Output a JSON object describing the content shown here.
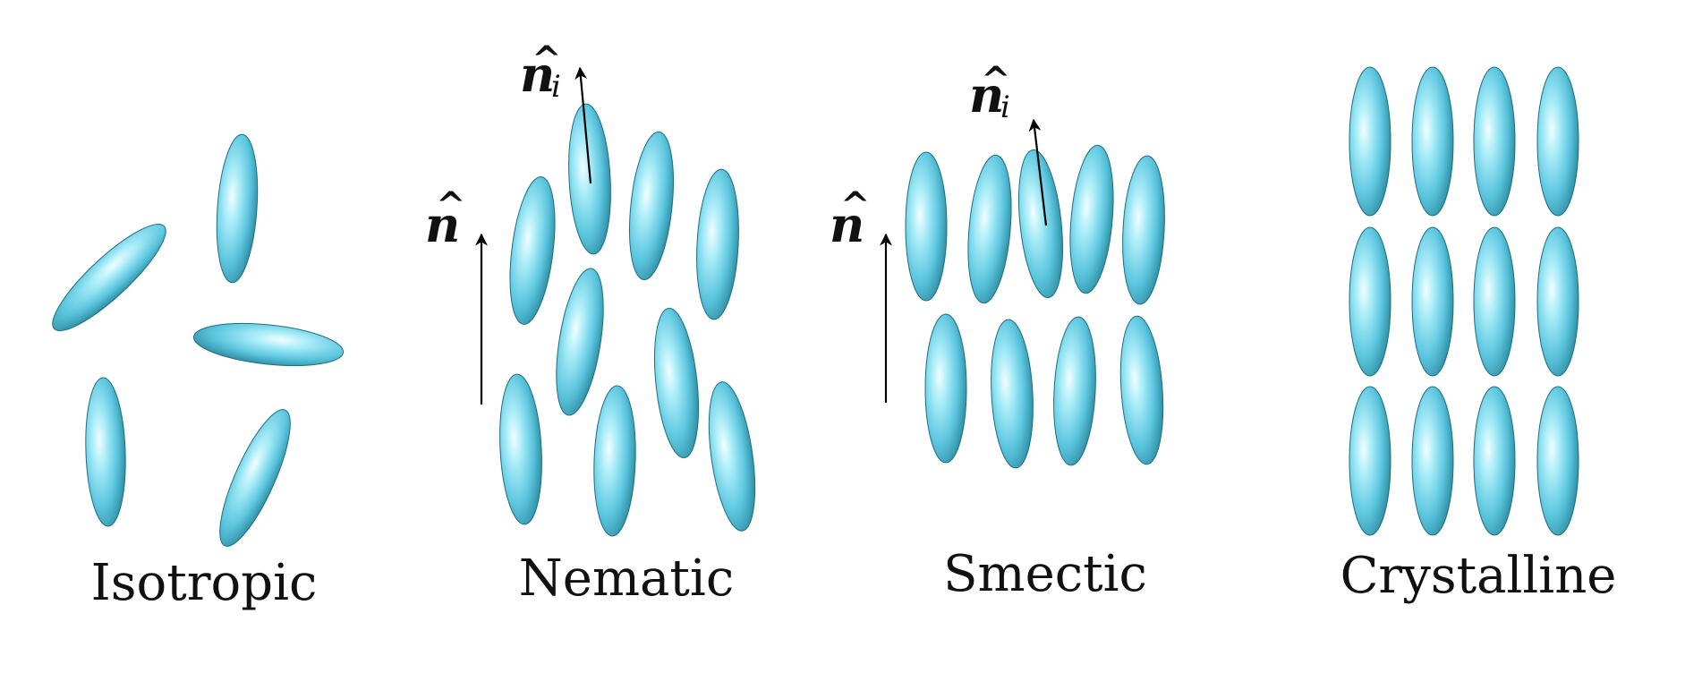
{
  "panels": {
    "isotropic": {
      "caption": "Isotropic"
    },
    "nematic": {
      "caption": "Nematic",
      "director_label": "n",
      "molecule_label": "n",
      "molecule_sub": "i"
    },
    "smectic": {
      "caption": "Smectic",
      "director_label": "n",
      "molecule_label": "n",
      "molecule_sub": "i"
    },
    "crystalline": {
      "caption": "Crystalline"
    }
  },
  "colors": {
    "molecule_highlight": "#e8fbff",
    "molecule_mid": "#6ccfe6",
    "molecule_edge": "#1e7f93",
    "arrow": "#000000",
    "text": "#111111"
  },
  "icons": {
    "molecule": "ellipsoid",
    "director": "arrow-up"
  }
}
